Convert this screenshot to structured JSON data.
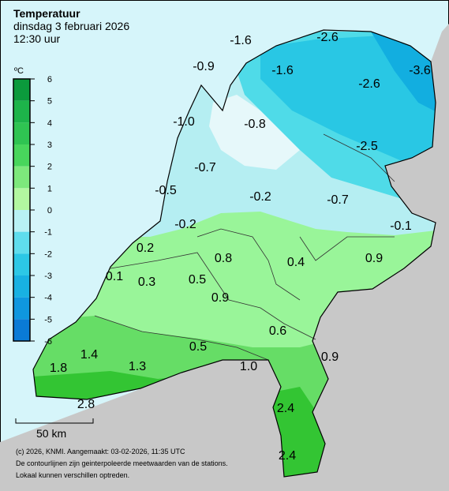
{
  "header": {
    "title": "Temperatuur",
    "date": "dinsdag 3 februari 2026",
    "time": "12:30 uur"
  },
  "legend": {
    "unit": "ºC",
    "ticks": [
      "6",
      "5",
      "4",
      "3",
      "2",
      "1",
      "0",
      "-1",
      "-2",
      "-3",
      "-4",
      "-5",
      "-6"
    ]
  },
  "stations": [
    "-1.6",
    "-2.6",
    "-0.9",
    "-1.6",
    "-2.6",
    "-3.6",
    "-1.0",
    "-0.8",
    "-2.5",
    "-0.7",
    "-0.5",
    "-0.2",
    "-0.7",
    "-0.2",
    "-0.1",
    "0.2",
    "0.8",
    "0.4",
    "0.9",
    "0.1",
    "0.3",
    "0.5",
    "0.9",
    "0.6",
    "0.5",
    "0.9",
    "1.4",
    "1.8",
    "1.3",
    "1.0",
    "2.8",
    "2.4",
    "2.4"
  ],
  "scale_bar": "50 km",
  "footer": [
    "(c) 2026, KNMI. Aangemaakt: 03-02-2026, 11:35 UTC",
    "De contourlijnen zijn geinterpoleerde meetwaarden van de stations.",
    "Lokaal kunnen verschillen optreden."
  ]
}
